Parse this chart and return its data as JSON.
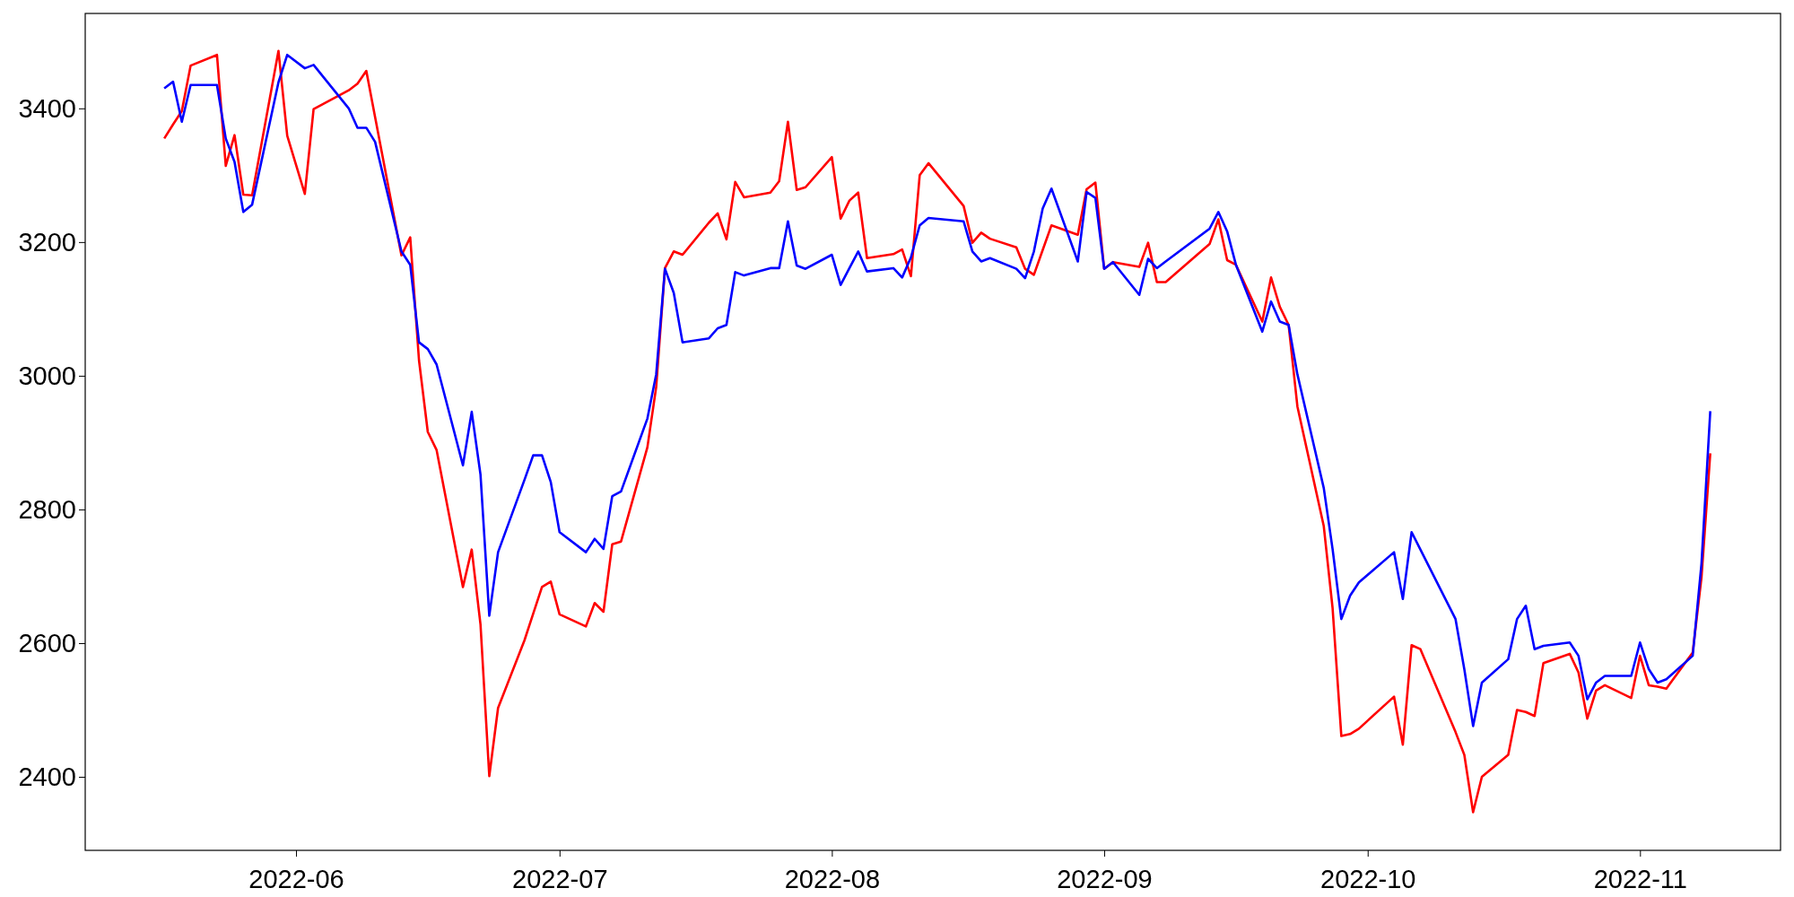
{
  "chart_data": {
    "type": "line",
    "x": [
      "2022-05-17",
      "2022-05-18",
      "2022-05-19",
      "2022-05-20",
      "2022-05-23",
      "2022-05-24",
      "2022-05-25",
      "2022-05-26",
      "2022-05-27",
      "2022-05-30",
      "2022-05-31",
      "2022-06-02",
      "2022-06-03",
      "2022-06-07",
      "2022-06-08",
      "2022-06-09",
      "2022-06-10",
      "2022-06-13",
      "2022-06-14",
      "2022-06-15",
      "2022-06-16",
      "2022-06-17",
      "2022-06-20",
      "2022-06-21",
      "2022-06-22",
      "2022-06-23",
      "2022-06-24",
      "2022-06-27",
      "2022-06-28",
      "2022-06-29",
      "2022-06-30",
      "2022-07-01",
      "2022-07-04",
      "2022-07-05",
      "2022-07-06",
      "2022-07-07",
      "2022-07-08",
      "2022-07-11",
      "2022-07-12",
      "2022-07-13",
      "2022-07-14",
      "2022-07-15",
      "2022-07-18",
      "2022-07-19",
      "2022-07-20",
      "2022-07-21",
      "2022-07-22",
      "2022-07-25",
      "2022-07-26",
      "2022-07-27",
      "2022-07-28",
      "2022-07-29",
      "2022-08-01",
      "2022-08-02",
      "2022-08-03",
      "2022-08-04",
      "2022-08-05",
      "2022-08-08",
      "2022-08-09",
      "2022-08-10",
      "2022-08-11",
      "2022-08-12",
      "2022-08-16",
      "2022-08-17",
      "2022-08-18",
      "2022-08-19",
      "2022-08-22",
      "2022-08-23",
      "2022-08-24",
      "2022-08-25",
      "2022-08-26",
      "2022-08-29",
      "2022-08-30",
      "2022-08-31",
      "2022-09-01",
      "2022-09-02",
      "2022-09-05",
      "2022-09-06",
      "2022-09-07",
      "2022-09-08",
      "2022-09-13",
      "2022-09-14",
      "2022-09-15",
      "2022-09-16",
      "2022-09-19",
      "2022-09-20",
      "2022-09-21",
      "2022-09-22",
      "2022-09-23",
      "2022-09-26",
      "2022-09-27",
      "2022-09-28",
      "2022-09-29",
      "2022-09-30",
      "2022-10-04",
      "2022-10-05",
      "2022-10-06",
      "2022-10-07",
      "2022-10-11",
      "2022-10-12",
      "2022-10-13",
      "2022-10-14",
      "2022-10-17",
      "2022-10-18",
      "2022-10-19",
      "2022-10-20",
      "2022-10-21",
      "2022-10-24",
      "2022-10-25",
      "2022-10-26",
      "2022-10-27",
      "2022-10-28",
      "2022-10-31",
      "2022-11-01",
      "2022-11-02",
      "2022-11-03",
      "2022-11-04",
      "2022-11-07",
      "2022-11-08",
      "2022-11-09"
    ],
    "series": [
      {
        "color": "#ff0000",
        "values": [
          3355,
          3376,
          3396,
          3464,
          3480,
          3314,
          3360,
          3271,
          3270,
          3486,
          3359,
          3272,
          3399,
          3427,
          3437,
          3456,
          3387,
          3180,
          3207,
          3023,
          2916,
          2889,
          2684,
          2740,
          2628,
          2401,
          2503,
          2604,
          2644,
          2684,
          2692,
          2643,
          2625,
          2660,
          2647,
          2748,
          2752,
          2893,
          2983,
          3161,
          3186,
          3181,
          3229,
          3243,
          3204,
          3290,
          3267,
          3274,
          3291,
          3380,
          3278,
          3282,
          3327,
          3235,
          3262,
          3274,
          3176,
          3182,
          3189,
          3149,
          3300,
          3318,
          3254,
          3199,
          3214,
          3205,
          3192,
          3160,
          3151,
          3188,
          3225,
          3211,
          3279,
          3289,
          3160,
          3170,
          3163,
          3199,
          3140,
          3140,
          3197,
          3234,
          3173,
          3166,
          3081,
          3147,
          3103,
          3076,
          2954,
          2775,
          2653,
          2461,
          2464,
          2472,
          2520,
          2448,
          2597,
          2591,
          2467,
          2433,
          2347,
          2400,
          2433,
          2500,
          2497,
          2491,
          2570,
          2584,
          2556,
          2487,
          2529,
          2537,
          2518,
          2581,
          2537,
          2535,
          2532,
          2586,
          2698,
          2884
        ]
      },
      {
        "color": "#0000ff",
        "values": [
          3430,
          3440,
          3380,
          3435,
          3435,
          3355,
          3320,
          3245,
          3256,
          3439,
          3480,
          3460,
          3465,
          3400,
          3371,
          3371,
          3350,
          3186,
          3166,
          3050,
          3040,
          3017,
          2866,
          2946,
          2852,
          2641,
          2736,
          2844,
          2881,
          2881,
          2841,
          2766,
          2736,
          2756,
          2741,
          2820,
          2827,
          2936,
          3002,
          3160,
          3124,
          3050,
          3056,
          3071,
          3076,
          3155,
          3150,
          3161,
          3161,
          3231,
          3165,
          3160,
          3181,
          3136,
          3161,
          3186,
          3156,
          3161,
          3147,
          3177,
          3225,
          3236,
          3231,
          3186,
          3171,
          3176,
          3160,
          3146,
          3186,
          3250,
          3280,
          3171,
          3275,
          3266,
          3160,
          3170,
          3121,
          3175,
          3161,
          3171,
          3220,
          3245,
          3216,
          3166,
          3066,
          3111,
          3081,
          3076,
          3002,
          2832,
          2741,
          2636,
          2671,
          2691,
          2736,
          2666,
          2766,
          2740,
          2636,
          2561,
          2476,
          2541,
          2576,
          2636,
          2656,
          2591,
          2596,
          2601,
          2581,
          2516,
          2541,
          2551,
          2551,
          2601,
          2561,
          2541,
          2546,
          2581,
          2719,
          2947
        ]
      }
    ],
    "xlim": [
      "2022-05-08",
      "2022-11-17"
    ],
    "xticks": [
      "2022-06",
      "2022-07",
      "2022-08",
      "2022-09",
      "2022-10",
      "2022-11"
    ],
    "ylim": [
      2290,
      3542
    ],
    "yticks": [
      2400,
      2600,
      2800,
      3000,
      3200,
      3400
    ],
    "grid": false
  }
}
